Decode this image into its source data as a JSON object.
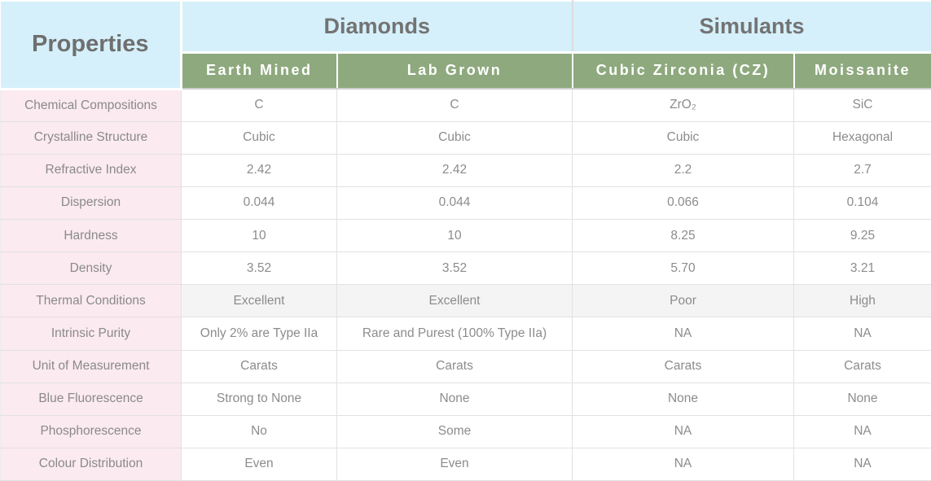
{
  "table": {
    "title_column_header": "Properties",
    "groups": [
      {
        "label": "Diamonds",
        "span": 2
      },
      {
        "label": "Simulants",
        "span": 2
      }
    ],
    "columns": [
      {
        "id": "earth-mined",
        "label": "Earth Mined"
      },
      {
        "id": "lab-grown",
        "label": "Lab Grown"
      },
      {
        "id": "cubic-zirconia",
        "label": "Cubic Zirconia (CZ)"
      },
      {
        "id": "moissanite",
        "label": "Moissanite"
      }
    ],
    "rows": [
      {
        "label": "Chemical Compositions",
        "values": [
          "C",
          "C",
          "ZrO₂",
          "SiC"
        ],
        "shaded": false
      },
      {
        "label": "Crystalline Structure",
        "values": [
          "Cubic",
          "Cubic",
          "Cubic",
          "Hexagonal"
        ],
        "shaded": false
      },
      {
        "label": "Refractive Index",
        "values": [
          "2.42",
          "2.42",
          "2.2",
          "2.7"
        ],
        "shaded": false
      },
      {
        "label": "Dispersion",
        "values": [
          "0.044",
          "0.044",
          "0.066",
          "0.104"
        ],
        "shaded": false
      },
      {
        "label": "Hardness",
        "values": [
          "10",
          "10",
          "8.25",
          "9.25"
        ],
        "shaded": false
      },
      {
        "label": "Density",
        "values": [
          "3.52",
          "3.52",
          "5.70",
          "3.21"
        ],
        "shaded": false
      },
      {
        "label": "Thermal Conditions",
        "values": [
          "Excellent",
          "Excellent",
          "Poor",
          "High"
        ],
        "shaded": true
      },
      {
        "label": "Intrinsic Purity",
        "values": [
          "Only 2% are Type IIa",
          "Rare and Purest (100% Type IIa)",
          "NA",
          "NA"
        ],
        "shaded": false
      },
      {
        "label": "Unit of Measurement",
        "values": [
          "Carats",
          "Carats",
          "Carats",
          "Carats"
        ],
        "shaded": false
      },
      {
        "label": "Blue Fluorescence",
        "values": [
          "Strong to None",
          "None",
          "None",
          "None"
        ],
        "shaded": false
      },
      {
        "label": "Phosphorescence",
        "values": [
          "No",
          "Some",
          "NA",
          "NA"
        ],
        "shaded": false
      },
      {
        "label": "Colour Distribution",
        "values": [
          "Even",
          "Even",
          "NA",
          "NA"
        ],
        "shaded": false
      }
    ]
  },
  "colors": {
    "header_blue": "#d5f0fa",
    "subheader_green": "#8ea97e",
    "label_pink": "#fbeaef",
    "shaded_row_gray": "#f4f4f4",
    "border_gray": "#e2e2e2",
    "text_gray": "#8c8c8c",
    "header_text_gray": "#6f6f6f"
  }
}
